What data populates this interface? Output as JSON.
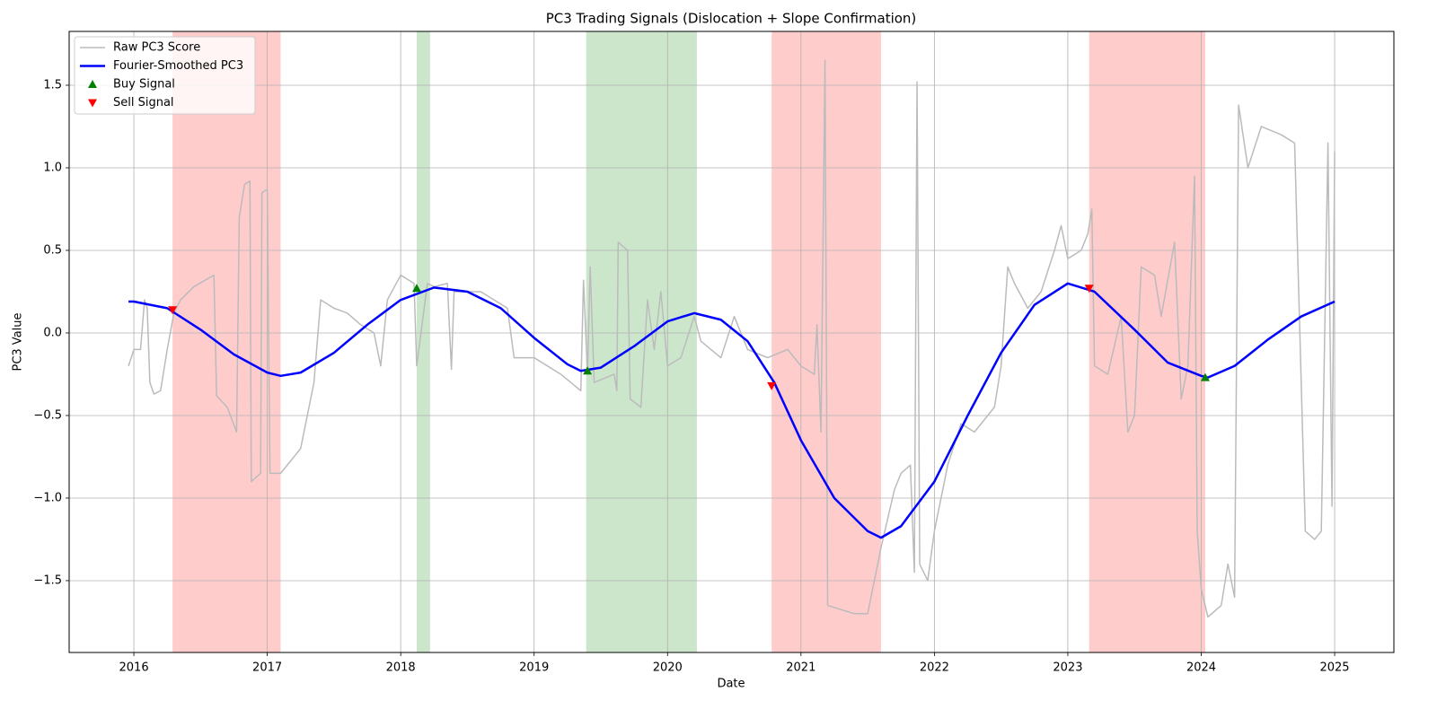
{
  "chart_data": {
    "type": "line",
    "title": "PC3 Trading Signals (Dislocation + Slope Confirmation)",
    "x_label": "Date",
    "y_label": "PC3 Value",
    "xlim": [
      2015.515,
      2025.444
    ],
    "ylim": [
      -1.935,
      1.826
    ],
    "xticks": [
      2016,
      2017,
      2018,
      2019,
      2020,
      2021,
      2022,
      2023,
      2024,
      2025
    ],
    "yticks": [
      {
        "value": -1.5,
        "label": "−1.5"
      },
      {
        "value": -1.0,
        "label": "−1.0"
      },
      {
        "value": -0.5,
        "label": "−0.5"
      },
      {
        "value": 0.0,
        "label": "0.0"
      },
      0.5,
      {
        "value": 1.0,
        "label": "1.0"
      },
      1.5
    ],
    "grid": true,
    "legend": "upper left",
    "spans": [
      {
        "x": [
          2016.29,
          2017.1
        ],
        "color": "#ff0000",
        "alpha": 0.2
      },
      {
        "x": [
          2018.12,
          2018.22
        ],
        "color": "#008000",
        "alpha": 0.2
      },
      {
        "x": [
          2019.39,
          2020.22
        ],
        "color": "#008000",
        "alpha": 0.2
      },
      {
        "x": [
          2020.78,
          2021.6
        ],
        "color": "#ff0000",
        "alpha": 0.2
      },
      {
        "x": [
          2023.16,
          2024.03
        ],
        "color": "#ff0000",
        "alpha": 0.2
      }
    ],
    "series": [
      {
        "name": "Raw PC3 Score",
        "type": "line",
        "color": "#bbbbbb",
        "width": 1.5,
        "x": [
          2015.96,
          2016.0,
          2016.05,
          2016.08,
          2016.1,
          2016.12,
          2016.15,
          2016.2,
          2016.25,
          2016.3,
          2016.35,
          2016.45,
          2016.6,
          2016.62,
          2016.7,
          2016.77,
          2016.79,
          2016.83,
          2016.87,
          2016.88,
          2016.95,
          2016.96,
          2017.0,
          2017.02,
          2017.1,
          2017.25,
          2017.35,
          2017.4,
          2017.5,
          2017.6,
          2017.7,
          2017.8,
          2017.85,
          2017.9,
          2018.0,
          2018.1,
          2018.12,
          2018.2,
          2018.25,
          2018.35,
          2018.38,
          2018.4,
          2018.6,
          2018.8,
          2018.85,
          2019.0,
          2019.2,
          2019.35,
          2019.37,
          2019.4,
          2019.42,
          2019.45,
          2019.6,
          2019.62,
          2019.63,
          2019.7,
          2019.72,
          2019.8,
          2019.85,
          2019.9,
          2019.95,
          2020.0,
          2020.1,
          2020.2,
          2020.25,
          2020.4,
          2020.5,
          2020.6,
          2020.75,
          2020.9,
          2021.0,
          2021.1,
          2021.12,
          2021.15,
          2021.18,
          2021.2,
          2021.4,
          2021.5,
          2021.6,
          2021.7,
          2021.75,
          2021.82,
          2021.85,
          2021.87,
          2021.89,
          2021.95,
          2022.0,
          2022.1,
          2022.2,
          2022.3,
          2022.45,
          2022.5,
          2022.55,
          2022.6,
          2022.7,
          2022.8,
          2022.9,
          2022.95,
          2023.0,
          2023.1,
          2023.15,
          2023.18,
          2023.2,
          2023.3,
          2023.4,
          2023.45,
          2023.5,
          2023.55,
          2023.65,
          2023.7,
          2023.8,
          2023.85,
          2023.9,
          2023.95,
          2023.97,
          2024.0,
          2024.05,
          2024.15,
          2024.2,
          2024.25,
          2024.28,
          2024.35,
          2024.45,
          2024.6,
          2024.7,
          2024.78,
          2024.85,
          2024.9,
          2024.95,
          2024.98,
          2025.0
        ],
        "values": [
          -0.2,
          -0.1,
          -0.1,
          0.2,
          0.15,
          -0.3,
          -0.37,
          -0.35,
          -0.1,
          0.12,
          0.2,
          0.28,
          0.35,
          -0.38,
          -0.45,
          -0.6,
          0.7,
          0.9,
          0.92,
          -0.9,
          -0.85,
          0.85,
          0.87,
          -0.85,
          -0.85,
          -0.7,
          -0.3,
          0.2,
          0.15,
          0.12,
          0.05,
          0.0,
          -0.2,
          0.2,
          0.35,
          0.3,
          -0.2,
          0.3,
          0.28,
          0.3,
          -0.22,
          0.25,
          0.25,
          0.15,
          -0.15,
          -0.15,
          -0.25,
          -0.35,
          0.32,
          -0.25,
          0.4,
          -0.3,
          -0.25,
          -0.35,
          0.55,
          0.5,
          -0.4,
          -0.45,
          0.2,
          -0.1,
          0.25,
          -0.2,
          -0.15,
          0.1,
          -0.05,
          -0.15,
          0.1,
          -0.1,
          -0.15,
          -0.1,
          -0.2,
          -0.25,
          0.05,
          -0.6,
          1.65,
          -1.65,
          -1.7,
          -1.7,
          -1.3,
          -0.95,
          -0.85,
          -0.8,
          -1.45,
          1.52,
          -1.4,
          -1.5,
          -1.2,
          -0.8,
          -0.55,
          -0.6,
          -0.45,
          -0.2,
          0.4,
          0.3,
          0.15,
          0.25,
          0.5,
          0.65,
          0.45,
          0.5,
          0.6,
          0.75,
          -0.2,
          -0.25,
          0.1,
          -0.6,
          -0.5,
          0.4,
          0.35,
          0.1,
          0.55,
          -0.4,
          -0.2,
          0.95,
          -1.2,
          -1.55,
          -1.72,
          -1.65,
          -1.4,
          -1.6,
          1.38,
          1.0,
          1.25,
          1.2,
          1.15,
          -1.2,
          -1.25,
          -1.2,
          1.15,
          -1.05,
          1.1
        ]
      },
      {
        "name": "Fourier-Smoothed PC3",
        "type": "line",
        "color": "#0000ff",
        "width": 2.5,
        "x": [
          2015.96,
          2016.0,
          2016.25,
          2016.5,
          2016.75,
          2017.0,
          2017.1,
          2017.25,
          2017.5,
          2017.75,
          2018.0,
          2018.25,
          2018.5,
          2018.75,
          2019.0,
          2019.25,
          2019.35,
          2019.5,
          2019.75,
          2020.0,
          2020.2,
          2020.4,
          2020.6,
          2020.8,
          2021.0,
          2021.25,
          2021.5,
          2021.6,
          2021.75,
          2022.0,
          2022.25,
          2022.5,
          2022.75,
          2023.0,
          2023.2,
          2023.5,
          2023.75,
          2024.0,
          2024.05,
          2024.25,
          2024.5,
          2024.75,
          2025.0
        ],
        "values": [
          0.19,
          0.19,
          0.15,
          0.02,
          -0.13,
          -0.24,
          -0.26,
          -0.24,
          -0.12,
          0.05,
          0.2,
          0.275,
          0.25,
          0.15,
          -0.03,
          -0.19,
          -0.23,
          -0.21,
          -0.08,
          0.07,
          0.12,
          0.08,
          -0.05,
          -0.3,
          -0.65,
          -1.0,
          -1.2,
          -1.24,
          -1.17,
          -0.9,
          -0.5,
          -0.12,
          0.17,
          0.3,
          0.25,
          0.02,
          -0.18,
          -0.26,
          -0.27,
          -0.2,
          -0.04,
          0.1,
          0.19
        ]
      },
      {
        "name": "Buy Signal",
        "type": "scatter",
        "marker": "^",
        "color": "#008000",
        "x": [
          2018.12,
          2019.4,
          2024.03
        ],
        "values": [
          0.27,
          -0.23,
          -0.27
        ]
      },
      {
        "name": "Sell Signal",
        "type": "scatter",
        "marker": "v",
        "color": "#ff0000",
        "x": [
          2016.29,
          2020.78,
          2023.16
        ],
        "values": [
          0.14,
          -0.32,
          0.27
        ]
      }
    ]
  }
}
